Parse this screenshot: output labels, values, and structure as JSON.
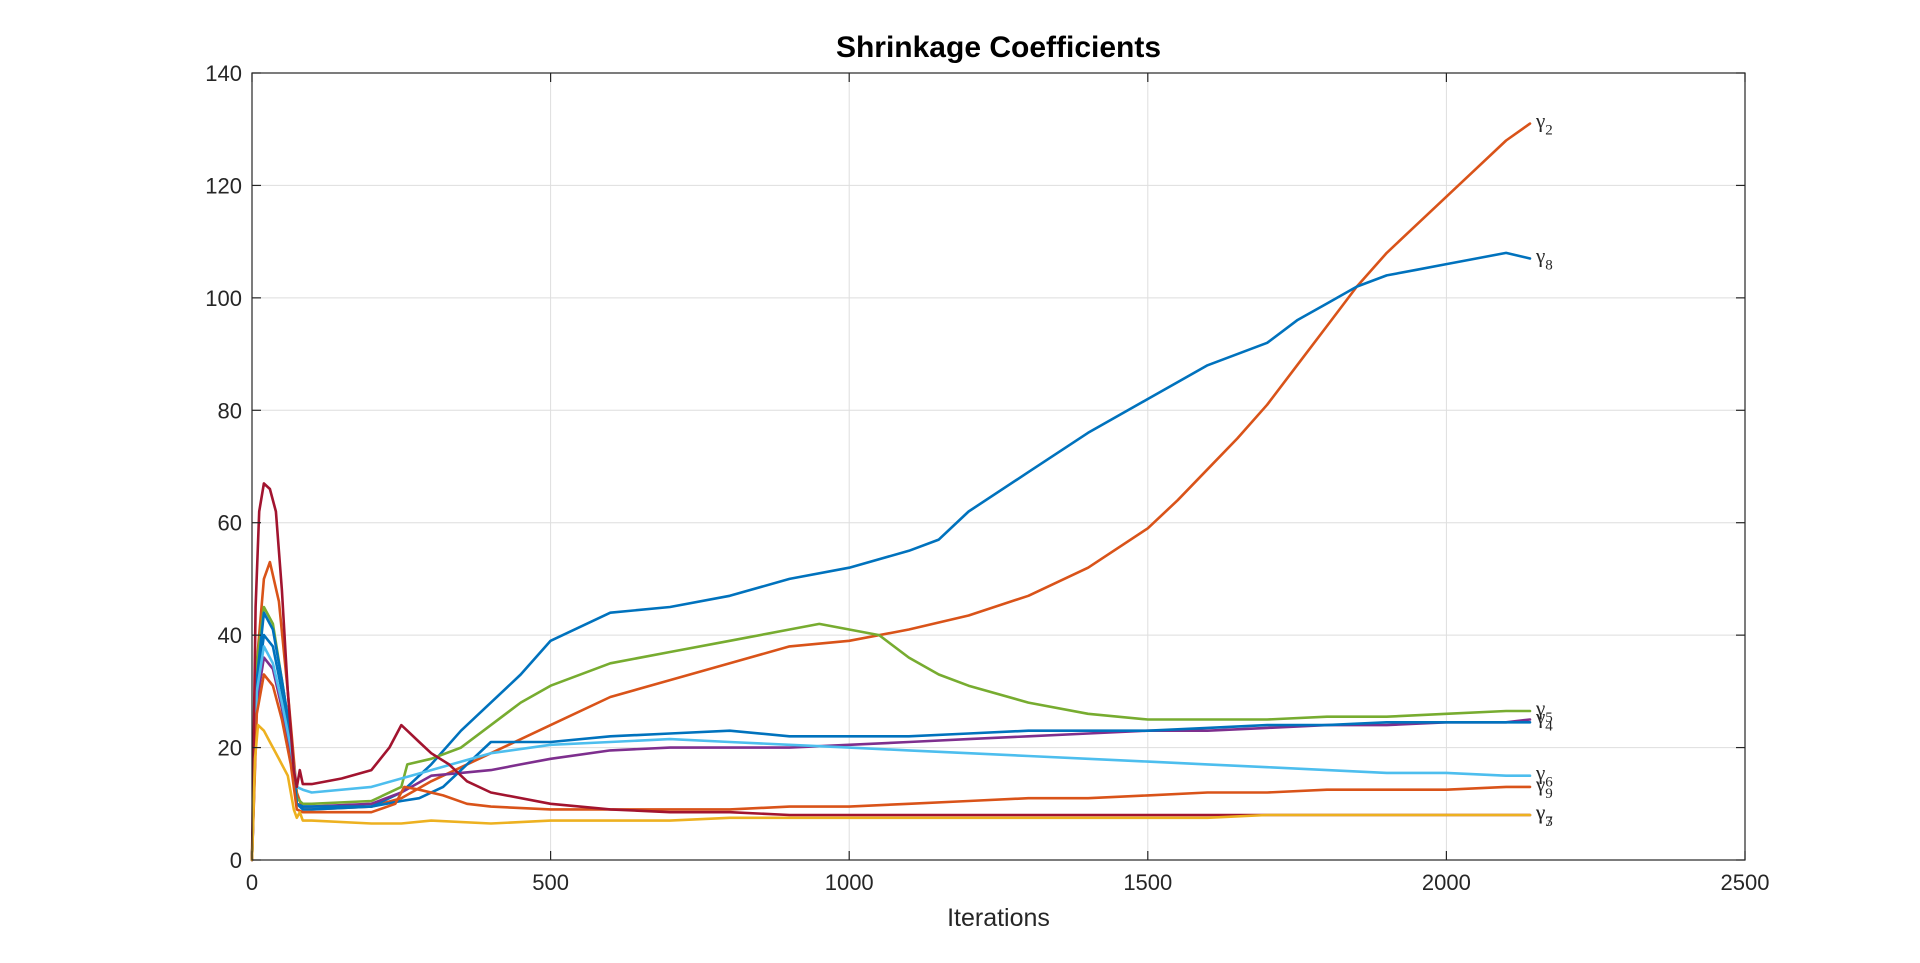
{
  "chart_data": {
    "type": "line",
    "title": "Shrinkage Coefficients",
    "xlabel": "Iterations",
    "ylabel": "",
    "xlim": [
      0,
      2500
    ],
    "ylim": [
      0,
      140
    ],
    "xticks": [
      0,
      500,
      1000,
      1500,
      2000,
      2500
    ],
    "yticks": [
      0,
      20,
      40,
      60,
      80,
      100,
      120,
      140
    ],
    "xtick_labels": [
      "0",
      "500",
      "1000",
      "1500",
      "2000",
      "2500"
    ],
    "ytick_labels": [
      "0",
      "20",
      "40",
      "60",
      "80",
      "100",
      "120",
      "140"
    ],
    "grid": true,
    "series": [
      {
        "name": "γ2",
        "label_main": "γ",
        "label_sub": "2",
        "color": "#D95319",
        "x": [
          0,
          8,
          20,
          30,
          45,
          60,
          75,
          85,
          100,
          200,
          250,
          300,
          400,
          500,
          600,
          700,
          800,
          900,
          1000,
          1100,
          1200,
          1300,
          1400,
          1500,
          1550,
          1600,
          1650,
          1700,
          1750,
          1800,
          1850,
          1900,
          1950,
          2000,
          2050,
          2100,
          2140
        ],
        "y": [
          0,
          35,
          50,
          53,
          46,
          30,
          12,
          9,
          9,
          9.5,
          11,
          14,
          19,
          24,
          29,
          32,
          35,
          38,
          39,
          41,
          43.5,
          47,
          52,
          59,
          64,
          69.5,
          75,
          81,
          88,
          95,
          102,
          108,
          113,
          118,
          123,
          128,
          131
        ]
      },
      {
        "name": "γ8",
        "label_main": "γ",
        "label_sub": "8",
        "color": "#0072BD",
        "x": [
          0,
          8,
          20,
          35,
          50,
          65,
          75,
          85,
          100,
          200,
          250,
          300,
          350,
          400,
          450,
          500,
          600,
          700,
          800,
          900,
          1000,
          1100,
          1150,
          1200,
          1300,
          1400,
          1500,
          1600,
          1700,
          1750,
          1800,
          1850,
          1900,
          1950,
          2000,
          2050,
          2100,
          2140
        ],
        "y": [
          0,
          30,
          40,
          38,
          30,
          20,
          10,
          9,
          9,
          9.5,
          12,
          17,
          23,
          28,
          33,
          39,
          44,
          45,
          47,
          50,
          52,
          55,
          57,
          62,
          69,
          76,
          82,
          88,
          92,
          96,
          99,
          102,
          104,
          105,
          106,
          107,
          108,
          107
        ]
      },
      {
        "name": "γ5",
        "label_main": "γ",
        "label_sub": "5",
        "color": "#77AC30",
        "x": [
          0,
          8,
          20,
          35,
          50,
          65,
          75,
          85,
          100,
          200,
          250,
          260,
          300,
          350,
          400,
          450,
          500,
          600,
          700,
          800,
          900,
          950,
          1000,
          1050,
          1100,
          1150,
          1200,
          1300,
          1400,
          1500,
          1600,
          1700,
          1800,
          1900,
          2000,
          2100,
          2140
        ],
        "y": [
          0,
          35,
          45,
          42,
          32,
          22,
          11,
          10,
          10,
          10.5,
          13,
          17,
          18,
          20,
          24,
          28,
          31,
          35,
          37,
          39,
          41,
          42,
          41,
          40,
          36,
          33,
          31,
          28,
          26,
          25,
          25,
          25,
          25.5,
          25.5,
          26,
          26.5,
          26.5
        ]
      },
      {
        "name": "γ4",
        "label_main": "γ",
        "label_sub": "4",
        "color": "#7E2F8E",
        "x": [
          0,
          8,
          20,
          35,
          50,
          65,
          75,
          85,
          100,
          200,
          250,
          300,
          350,
          400,
          450,
          500,
          600,
          700,
          800,
          900,
          1000,
          1100,
          1200,
          1300,
          1400,
          1500,
          1600,
          1700,
          1800,
          1900,
          2000,
          2100,
          2140
        ],
        "y": [
          0,
          28,
          36,
          34,
          27,
          18,
          10,
          9.5,
          9.5,
          10,
          12,
          15,
          15.5,
          16,
          17,
          18,
          19.5,
          20,
          20,
          20,
          20.5,
          21,
          21.5,
          22,
          22.5,
          23,
          23,
          23.5,
          24,
          24,
          24.5,
          24.5,
          25
        ]
      },
      {
        "name": "γ1",
        "color": "#0072BD",
        "x": [
          0,
          8,
          20,
          35,
          50,
          65,
          75,
          85,
          100,
          200,
          250,
          280,
          320,
          360,
          400,
          450,
          500,
          600,
          700,
          800,
          900,
          1000,
          1100,
          1200,
          1300,
          1400,
          1500,
          1600,
          1700,
          1800,
          1900,
          2000,
          2100,
          2140
        ],
        "y": [
          0,
          32,
          44,
          41,
          32,
          22,
          10,
          9.5,
          9.5,
          9.5,
          10.5,
          11,
          13,
          17,
          21,
          21,
          21,
          22,
          22.5,
          23,
          22,
          22,
          22,
          22.5,
          23,
          23,
          23,
          23.5,
          24,
          24,
          24.5,
          24.5,
          24.5,
          24.5
        ]
      },
      {
        "name": "γ6",
        "label_main": "γ",
        "label_sub": "6",
        "color": "#4DBEEE",
        "x": [
          0,
          8,
          20,
          35,
          50,
          65,
          75,
          85,
          100,
          200,
          250,
          300,
          400,
          500,
          600,
          700,
          800,
          900,
          1000,
          1100,
          1200,
          1300,
          1400,
          1500,
          1600,
          1700,
          1800,
          1900,
          2000,
          2100,
          2140
        ],
        "y": [
          0,
          30,
          38,
          35,
          28,
          20,
          13,
          12.5,
          12,
          13,
          14.5,
          16,
          19,
          20.5,
          21,
          21.5,
          21,
          20.5,
          20,
          19.5,
          19,
          18.5,
          18,
          17.5,
          17,
          16.5,
          16,
          15.5,
          15.5,
          15,
          15
        ]
      },
      {
        "name": "γ9",
        "label_main": "γ",
        "label_sub": "9",
        "color": "#D95319",
        "x": [
          0,
          8,
          20,
          35,
          50,
          65,
          75,
          85,
          100,
          200,
          240,
          255,
          280,
          320,
          360,
          400,
          500,
          600,
          700,
          800,
          900,
          1000,
          1100,
          1200,
          1300,
          1400,
          1500,
          1600,
          1700,
          1800,
          1900,
          2000,
          2100,
          2140
        ],
        "y": [
          0,
          26,
          33,
          31,
          25,
          17,
          9,
          8.5,
          8.5,
          8.5,
          10,
          13,
          12.5,
          11.5,
          10,
          9.5,
          9,
          9,
          9,
          9,
          9.5,
          9.5,
          10,
          10.5,
          11,
          11,
          11.5,
          12,
          12,
          12.5,
          12.5,
          12.5,
          13,
          13
        ]
      },
      {
        "name": "γ3",
        "label_main": "γ",
        "label_sub": "3",
        "color": "#A2142F",
        "x": [
          0,
          6,
          12,
          20,
          30,
          40,
          50,
          60,
          70,
          75,
          80,
          85,
          100,
          150,
          200,
          230,
          250,
          260,
          280,
          300,
          330,
          360,
          400,
          500,
          600,
          700,
          800,
          900,
          1000,
          1100,
          1200,
          1300,
          1400,
          1500,
          1600,
          1700,
          1800,
          1900,
          2000,
          2100,
          2140
        ],
        "y": [
          0,
          45,
          62,
          67,
          66,
          62,
          48,
          30,
          16,
          13,
          16,
          13.5,
          13.5,
          14.5,
          16,
          20,
          24,
          23,
          21,
          19,
          17,
          14,
          12,
          10,
          9,
          8.5,
          8.5,
          8,
          8,
          8,
          8,
          8,
          8,
          8,
          8,
          8,
          8,
          8,
          8,
          8,
          8
        ]
      },
      {
        "name": "γ7",
        "label_main": "γ",
        "label_sub": "7",
        "color": "#EDB120",
        "x": [
          0,
          5,
          10,
          20,
          30,
          45,
          60,
          70,
          75,
          80,
          85,
          100,
          200,
          250,
          300,
          400,
          500,
          600,
          700,
          800,
          900,
          1000,
          1100,
          1200,
          1300,
          1400,
          1500,
          1600,
          1700,
          1800,
          1900,
          2000,
          2100,
          2140
        ],
        "y": [
          0,
          18,
          24,
          23,
          21,
          18,
          15,
          9,
          7.5,
          8.5,
          7,
          7,
          6.5,
          6.5,
          7,
          6.5,
          7,
          7,
          7,
          7.5,
          7.5,
          7.5,
          7.5,
          7.5,
          7.5,
          7.5,
          7.5,
          7.5,
          8,
          8,
          8,
          8,
          8,
          8
        ]
      }
    ]
  }
}
